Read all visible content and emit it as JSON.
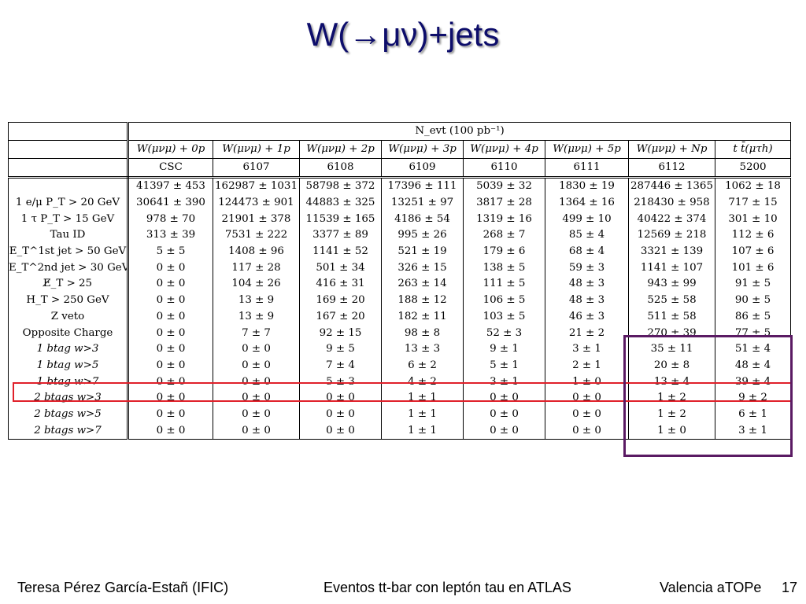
{
  "title": "W(→μν)+jets",
  "table": {
    "top_header": "N_evt (100 pb⁻¹)",
    "columns": [
      "W(μνμ) + 0p",
      "W(μνμ) + 1p",
      "W(μνμ) + 2p",
      "W(μνμ) + 3p",
      "W(μνμ) + 4p",
      "W(μνμ) + 5p",
      "W(μνμ) + Np",
      "t t̄(μτh)"
    ],
    "sample_label": "CSC",
    "samples": [
      "6107",
      "6108",
      "6109",
      "6110",
      "6111",
      "6112",
      "5200"
    ],
    "total_row": [
      "41397 ± 453",
      "162987 ± 1031",
      "58798 ± 372",
      "17396 ± 111",
      "5039 ± 32",
      "1830 ± 19",
      "287446 ± 1365",
      "1062 ± 18"
    ],
    "rows": [
      {
        "label": "1 e/μ P_T > 20 GeV",
        "values": [
          "30641 ± 390",
          "124473 ± 901",
          "44883 ± 325",
          "13251 ± 97",
          "3817 ± 28",
          "1364 ± 16",
          "218430 ± 958",
          "717 ± 15"
        ]
      },
      {
        "label": "1 τ P_T > 15 GeV",
        "values": [
          "978 ± 70",
          "21901 ± 378",
          "11539 ± 165",
          "4186 ± 54",
          "1319 ± 16",
          "499 ± 10",
          "40422 ± 374",
          "301 ± 10"
        ]
      },
      {
        "label": "Tau ID",
        "values": [
          "313 ± 39",
          "7531 ± 222",
          "3377 ± 89",
          "995 ± 26",
          "268 ± 7",
          "85 ± 4",
          "12569 ± 218",
          "112 ± 6"
        ]
      },
      {
        "label": "E_T^1st jet > 50 GeV",
        "values": [
          "5 ± 5",
          "1408 ± 96",
          "1141 ± 52",
          "521 ± 19",
          "179 ± 6",
          "68 ± 4",
          "3321 ± 139",
          "107 ± 6"
        ]
      },
      {
        "label": "E_T^2nd jet > 30 GeV",
        "values": [
          "0 ± 0",
          "117 ± 28",
          "501 ± 34",
          "326 ± 15",
          "138 ± 5",
          "59 ± 3",
          "1141 ± 107",
          "101 ± 6"
        ]
      },
      {
        "label": "E̸_T > 25",
        "values": [
          "0 ± 0",
          "104 ± 26",
          "416 ± 31",
          "263 ± 14",
          "111 ± 5",
          "48 ± 3",
          "943 ± 99",
          "91 ± 5"
        ]
      },
      {
        "label": "H_T > 250 GeV",
        "values": [
          "0 ± 0",
          "13 ± 9",
          "169 ± 20",
          "188 ± 12",
          "106 ± 5",
          "48 ± 3",
          "525 ± 58",
          "90 ± 5"
        ]
      },
      {
        "label": "Z veto",
        "values": [
          "0 ± 0",
          "13 ± 9",
          "167 ± 20",
          "182 ± 11",
          "103 ± 5",
          "46 ± 3",
          "511 ± 58",
          "86 ± 5"
        ]
      },
      {
        "label": "Opposite Charge",
        "values": [
          "0 ± 0",
          "7 ± 7",
          "92 ± 15",
          "98 ± 8",
          "52 ± 3",
          "21 ± 2",
          "270 ± 39",
          "77 ± 5"
        ]
      },
      {
        "label": "1 btag w>3",
        "values": [
          "0 ± 0",
          "0 ± 0",
          "9 ± 5",
          "13 ± 3",
          "9 ± 1",
          "3 ± 1",
          "35 ± 11",
          "51 ± 4"
        ]
      },
      {
        "label": "1 btag w>5",
        "values": [
          "0 ± 0",
          "0 ± 0",
          "7 ± 4",
          "6 ± 2",
          "5 ± 1",
          "2 ± 1",
          "20 ± 8",
          "48 ± 4"
        ]
      },
      {
        "label": "1 btag w>7",
        "values": [
          "0 ± 0",
          "0 ± 0",
          "5 ± 3",
          "4 ± 2",
          "3 ± 1",
          "1 ± 0",
          "13 ± 4",
          "39 ± 4"
        ]
      },
      {
        "label": "2 btags w>3",
        "values": [
          "0 ± 0",
          "0 ± 0",
          "0 ± 0",
          "1 ± 1",
          "0 ± 0",
          "0 ± 0",
          "1 ± 2",
          "9 ± 2"
        ]
      },
      {
        "label": "2 btags w>5",
        "values": [
          "0 ± 0",
          "0 ± 0",
          "0 ± 0",
          "1 ± 1",
          "0 ± 0",
          "0 ± 0",
          "1 ± 2",
          "6 ± 1"
        ]
      },
      {
        "label": "2 btags w>7",
        "values": [
          "0 ± 0",
          "0 ± 0",
          "0 ± 0",
          "1 ± 1",
          "0 ± 0",
          "0 ± 0",
          "1 ± 0",
          "3 ± 1"
        ]
      }
    ]
  },
  "highlights": {
    "row_box_color": "#e0202a",
    "column_box_color": "#5a1a63"
  },
  "footer": {
    "author": "Teresa Pérez García-Estañ (IFIC)",
    "center": "Eventos tt-bar con leptón tau en ATLAS",
    "right": "Valencia aTOPe",
    "page": "17"
  },
  "colors": {
    "title": "#0d0d6b"
  }
}
